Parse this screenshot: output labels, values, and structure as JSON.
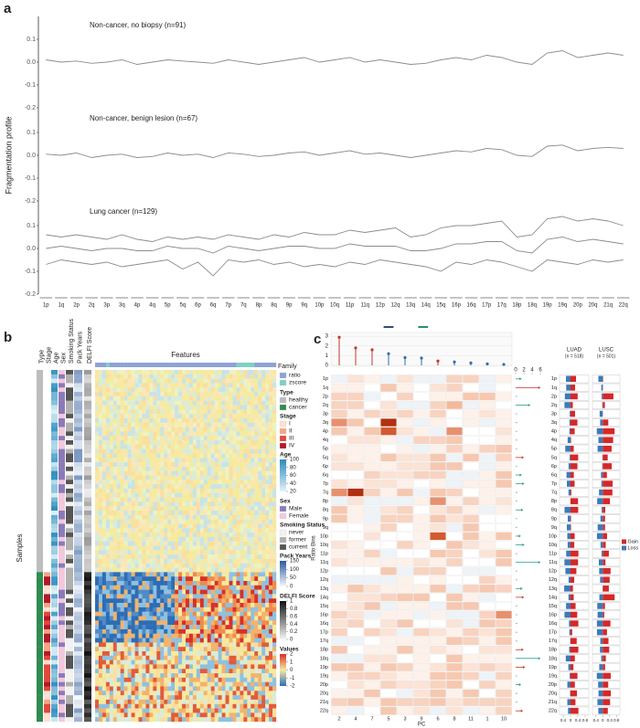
{
  "panel_a": {
    "label": "a",
    "ylabel": "Fragmentation profile",
    "ylim": [
      -0.2,
      0.2
    ],
    "yticks": [
      -0.2,
      -0.1,
      {
        "value": 0.0,
        "label": "0.0"
      },
      0.1
    ],
    "color": "#8c8c8c",
    "arms": [
      "1p",
      "1q",
      "2p",
      "2q",
      "3p",
      "3q",
      "4p",
      "4q",
      "5p",
      "5q",
      "6p",
      "6q",
      "7p",
      "7q",
      "8p",
      "8q",
      "9p",
      "9q",
      "10p",
      "10q",
      "11p",
      "11q",
      "12p",
      "12q",
      "13q",
      "14q",
      "15q",
      "16p",
      "16q",
      "17p",
      "17q",
      "18p",
      "18q",
      "19p",
      "19q",
      "20p",
      "20q",
      "21q",
      "22q"
    ],
    "panels": [
      {
        "title": "Non-cancer, no biopsy (n=91)",
        "lines": [
          [
            0.01,
            0.0,
            0.005,
            -0.005,
            0.0,
            0.01,
            -0.01,
            0.0,
            0.01,
            0.005,
            0.0,
            -0.005,
            0.01,
            0.0,
            -0.01,
            0.0,
            0.01,
            0.02,
            0.0,
            0.01,
            0.02,
            0.0,
            0.01,
            0.0,
            -0.01,
            -0.005,
            0.01,
            0.02,
            0.01,
            0.03,
            0.02,
            0.0,
            -0.01,
            0.04,
            0.05,
            0.02,
            0.03,
            0.04,
            0.03
          ]
        ]
      },
      {
        "title": "Non-cancer, benign lesion (n=67)",
        "lines": [
          [
            0.005,
            0.0,
            0.01,
            -0.01,
            0.0,
            0.005,
            -0.01,
            -0.005,
            0.01,
            0.0,
            0.005,
            -0.01,
            0.01,
            0.005,
            -0.005,
            0.0,
            0.01,
            0.015,
            0.0,
            0.01,
            0.02,
            0.005,
            0.01,
            0.0,
            -0.01,
            0.0,
            0.01,
            0.02,
            0.015,
            0.03,
            0.025,
            0.0,
            -0.005,
            0.04,
            0.045,
            0.02,
            0.03,
            0.035,
            0.03
          ]
        ]
      },
      {
        "title": "Lung cancer (n=129)",
        "lines": [
          [
            0.06,
            0.05,
            0.06,
            0.05,
            0.04,
            0.06,
            0.04,
            0.03,
            0.05,
            0.04,
            0.05,
            0.04,
            0.06,
            0.05,
            0.04,
            0.06,
            0.05,
            0.07,
            0.06,
            0.06,
            0.08,
            0.07,
            0.08,
            0.09,
            0.05,
            0.06,
            0.09,
            0.1,
            0.1,
            0.11,
            0.12,
            0.05,
            0.06,
            0.13,
            0.14,
            0.12,
            0.13,
            0.12,
            0.1
          ],
          [
            0.0,
            0.01,
            0.0,
            -0.01,
            0.0,
            0.0,
            -0.01,
            -0.01,
            0.01,
            0.0,
            0.0,
            -0.02,
            0.01,
            0.0,
            -0.01,
            0.0,
            0.01,
            0.01,
            0.0,
            0.0,
            0.02,
            0.01,
            0.01,
            0.01,
            -0.01,
            -0.01,
            0.0,
            0.02,
            0.02,
            0.03,
            0.03,
            -0.01,
            -0.02,
            0.04,
            0.05,
            0.03,
            0.04,
            0.03,
            0.02
          ],
          [
            -0.07,
            -0.05,
            -0.06,
            -0.07,
            -0.06,
            -0.08,
            -0.07,
            -0.06,
            -0.05,
            -0.09,
            -0.06,
            -0.12,
            -0.05,
            -0.06,
            -0.05,
            -0.07,
            -0.06,
            -0.08,
            -0.07,
            -0.08,
            -0.06,
            -0.07,
            -0.05,
            -0.06,
            -0.07,
            -0.08,
            -0.1,
            -0.06,
            -0.07,
            -0.05,
            -0.06,
            -0.08,
            -0.1,
            -0.05,
            -0.06,
            -0.07,
            -0.05,
            -0.06,
            -0.05
          ]
        ]
      }
    ]
  },
  "panel_b": {
    "label": "b",
    "columns": [
      "Type",
      "Stage",
      "Age",
      "Sex",
      "Smoking Status",
      "Pack Years",
      "DELFI Score"
    ],
    "features": "Features",
    "family": "Family",
    "samples": "Samples",
    "family_items": [
      "ratio",
      "zscore"
    ],
    "family_colors": [
      "#8ea2d4",
      "#7fd0c4"
    ],
    "groups": [
      {
        "title": "Type",
        "items": [
          "healthy",
          "cancer"
        ],
        "colors": [
          "#bdbdbd",
          "#2e8b4f"
        ]
      },
      {
        "title": "Stage",
        "items": [
          "I",
          "II",
          "III",
          "IV"
        ],
        "colors": [
          "#fde0d0",
          "#f4a582",
          "#e3473a",
          "#b2182b"
        ]
      },
      {
        "title": "Age",
        "ticks": [
          100,
          80,
          60,
          40,
          20
        ],
        "colors": [
          "#2b8cbe",
          "#e0f3f8"
        ]
      },
      {
        "title": "Sex",
        "items": [
          "Male",
          "Female"
        ],
        "colors": [
          "#8a7bb8",
          "#f3c8dc"
        ]
      },
      {
        "title": "Smoking Status",
        "items": [
          "never",
          "former",
          "current"
        ],
        "colors": [
          "#f2f2f2",
          "#b0b0b0",
          "#555555"
        ]
      },
      {
        "title": "Pack Years",
        "ticks": [
          150,
          100,
          50,
          0
        ],
        "colors": [
          "#2c5a9b",
          "#f5f8fc"
        ]
      },
      {
        "title": "DELFI Score",
        "ticks": [
          1,
          0.8,
          0.6,
          0.4,
          0.2,
          0
        ],
        "colors": [
          "#111111",
          "#f5f5f5"
        ]
      },
      {
        "title": "Values",
        "ticks": [
          2,
          1,
          0,
          -1,
          -2
        ],
        "colors": [
          "#d7302a",
          "#f6ea9f",
          "#2c6db5"
        ]
      }
    ]
  },
  "panel_c": {
    "label": "c",
    "ylabel": "Ratio Bins",
    "xlabel": "PC",
    "pc_labels": [
      "2",
      "4",
      "7",
      "5",
      "3",
      "9",
      "6",
      "8",
      "11",
      "1",
      "10"
    ],
    "ylim": [
      0,
      3.2
    ],
    "yticks": [
      0,
      1,
      2,
      3
    ],
    "values": [
      2.9,
      1.8,
      1.6,
      1.2,
      0.8,
      0.75,
      0.45,
      0.35,
      0.25,
      0.15,
      0.1
    ],
    "colors": [
      "#c0392b",
      "#c0392b",
      "#c0392b",
      "#2e6fad",
      "#2e6fad",
      "#2e6fad",
      "#c0392b",
      "#2e6fad",
      "#2e6fad",
      "#2e6fad",
      "#2e6fad"
    ],
    "arrow_ticks": [
      0,
      2,
      4,
      6
    ],
    "luad": [
      "LUAD",
      "(n = 518)"
    ],
    "lusc": [
      "LUSC",
      "(n = 501)"
    ],
    "bar_xlim": [
      -0.6,
      1.0
    ],
    "bar_ticks": [
      {
        "value": -0.4,
        "label": "0.4"
      },
      0,
      0.4,
      0.8
    ],
    "legend": [
      "Gain",
      "Loss"
    ],
    "legend_colors": [
      "#d62728",
      "#3d7ab8"
    ]
  }
}
